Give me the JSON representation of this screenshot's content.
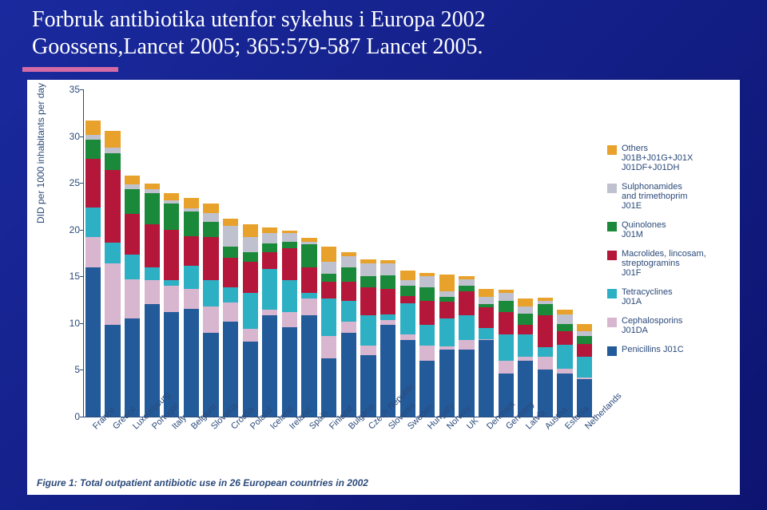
{
  "title_line1": "Forbruk antibiotika utenfor sykehus i Europa 2002",
  "title_line2": "Goossens,Lancet 2005; 365:579-587 Lancet 2005.",
  "caption": "Figure 1: Total outpatient antibiotic use in 26 European countries in 2002",
  "y_axis_label": "DID per 1000 inhabitants per day",
  "chart": {
    "type": "stacked_bar",
    "ylim": [
      0,
      35
    ],
    "ytick_step": 5,
    "yticks": [
      0,
      5,
      10,
      15,
      20,
      25,
      30,
      35
    ],
    "bar_width_ratio": 0.78,
    "background_color": "#ffffff",
    "axis_color": "#2b4a7a",
    "label_fontsize": 11,
    "categories": [
      "France",
      "Greece",
      "Luxembourg",
      "Portugal",
      "Italy",
      "Belgium",
      "Slovakia",
      "Croatia",
      "Poland",
      "Iceland",
      "Ireland",
      "Spain",
      "Finland",
      "Bulgaria",
      "Czech Republic",
      "Slovenia",
      "Sweden",
      "Hungary",
      "Norway",
      "UK",
      "Denmark",
      "Germany",
      "Latvia",
      "Austria",
      "Estonia",
      "Netherlands"
    ],
    "series_order": [
      "penicillins",
      "cephalosporins",
      "tetracyclines",
      "macrolides",
      "quinolones",
      "sulphonamides",
      "others"
    ],
    "legend": [
      {
        "key": "others",
        "label": "Others\nJ01B+J01G+J01X\nJ01DF+J01DH",
        "color": "#e8a22b"
      },
      {
        "key": "sulphonamides",
        "label": "Sulphonamides\nand trimethoprim\nJ01E",
        "color": "#bfc1cf"
      },
      {
        "key": "quinolones",
        "label": "Quinolones\nJ01M",
        "color": "#1a8a3a"
      },
      {
        "key": "macrolides",
        "label": "Macrolides, lincosam,\nstreptogramins\nJ01F",
        "color": "#b5173a"
      },
      {
        "key": "tetracyclines",
        "label": "Tetracyclines\nJ01A",
        "color": "#2db0c4"
      },
      {
        "key": "cephalosporins",
        "label": "Cephalosporins\nJ01DA",
        "color": "#d9b6cf"
      },
      {
        "key": "penicillins",
        "label": "Penicillins J01C",
        "color": "#235a9a"
      }
    ],
    "colors": {
      "penicillins": "#235a9a",
      "cephalosporins": "#d9b6cf",
      "tetracyclines": "#2db0c4",
      "macrolides": "#b5173a",
      "quinolones": "#1a8a3a",
      "sulphonamides": "#bfc1cf",
      "others": "#e8a22b"
    },
    "data": {
      "France": {
        "penicillins": 16.0,
        "cephalosporins": 3.2,
        "tetracyclines": 3.2,
        "macrolides": 5.2,
        "quinolones": 2.0,
        "sulphonamides": 0.5,
        "others": 1.6
      },
      "Greece": {
        "penicillins": 9.8,
        "cephalosporins": 6.6,
        "tetracyclines": 2.2,
        "macrolides": 7.8,
        "quinolones": 1.8,
        "sulphonamides": 0.6,
        "others": 1.8
      },
      "Luxembourg": {
        "penicillins": 10.5,
        "cephalosporins": 4.2,
        "tetracyclines": 2.6,
        "macrolides": 4.4,
        "quinolones": 2.6,
        "sulphonamides": 0.5,
        "others": 1.0
      },
      "Portugal": {
        "penicillins": 12.0,
        "cephalosporins": 2.6,
        "tetracyclines": 1.4,
        "macrolides": 4.6,
        "quinolones": 3.3,
        "sulphonamides": 0.4,
        "others": 0.6
      },
      "Italy": {
        "penicillins": 11.2,
        "cephalosporins": 2.8,
        "tetracyclines": 0.6,
        "macrolides": 5.4,
        "quinolones": 2.8,
        "sulphonamides": 0.3,
        "others": 0.8
      },
      "Belgium": {
        "penicillins": 11.5,
        "cephalosporins": 2.2,
        "tetracyclines": 2.4,
        "macrolides": 3.2,
        "quinolones": 2.6,
        "sulphonamides": 0.4,
        "others": 1.1
      },
      "Slovakia": {
        "penicillins": 9.0,
        "cephalosporins": 2.8,
        "tetracyclines": 2.8,
        "macrolides": 4.6,
        "quinolones": 1.6,
        "sulphonamides": 1.0,
        "others": 1.0
      },
      "Croatia": {
        "penicillins": 10.2,
        "cephalosporins": 2.0,
        "tetracyclines": 1.6,
        "macrolides": 3.2,
        "quinolones": 1.2,
        "sulphonamides": 2.2,
        "others": 0.8
      },
      "Poland": {
        "penicillins": 8.0,
        "cephalosporins": 1.4,
        "tetracyclines": 3.8,
        "macrolides": 3.4,
        "quinolones": 1.0,
        "sulphonamides": 1.6,
        "others": 1.4
      },
      "Iceland": {
        "penicillins": 10.8,
        "cephalosporins": 0.6,
        "tetracyclines": 4.4,
        "macrolides": 1.8,
        "quinolones": 0.9,
        "sulphonamides": 1.1,
        "others": 0.6
      },
      "Ireland": {
        "penicillins": 9.6,
        "cephalosporins": 1.6,
        "tetracyclines": 3.4,
        "macrolides": 3.4,
        "quinolones": 0.7,
        "sulphonamides": 0.9,
        "others": 0.3
      },
      "Spain": {
        "penicillins": 10.8,
        "cephalosporins": 1.8,
        "tetracyclines": 0.6,
        "macrolides": 2.8,
        "quinolones": 2.4,
        "sulphonamides": 0.3,
        "others": 0.4
      },
      "Finland": {
        "penicillins": 6.2,
        "cephalosporins": 2.4,
        "tetracyclines": 4.0,
        "macrolides": 1.8,
        "quinolones": 0.9,
        "sulphonamides": 1.3,
        "others": 1.6
      },
      "Bulgaria": {
        "penicillins": 9.0,
        "cephalosporins": 1.2,
        "tetracyclines": 2.2,
        "macrolides": 2.0,
        "quinolones": 1.6,
        "sulphonamides": 1.2,
        "others": 0.4
      },
      "CzechRepublic": {
        "penicillins": 6.6,
        "cephalosporins": 1.0,
        "tetracyclines": 3.2,
        "macrolides": 3.0,
        "quinolones": 1.2,
        "sulphonamides": 1.4,
        "others": 0.4
      },
      "Slovenia": {
        "penicillins": 9.8,
        "cephalosporins": 0.5,
        "tetracyclines": 0.6,
        "macrolides": 2.8,
        "quinolones": 1.4,
        "sulphonamides": 1.3,
        "others": 0.3
      },
      "Sweden": {
        "penicillins": 8.2,
        "cephalosporins": 0.6,
        "tetracyclines": 3.3,
        "macrolides": 0.8,
        "quinolones": 1.1,
        "sulphonamides": 0.6,
        "others": 1.0
      },
      "Hungary": {
        "penicillins": 6.0,
        "cephalosporins": 1.6,
        "tetracyclines": 2.2,
        "macrolides": 2.6,
        "quinolones": 1.4,
        "sulphonamides": 1.2,
        "others": 0.4
      },
      "Norway": {
        "penicillins": 7.2,
        "cephalosporins": 0.3,
        "tetracyclines": 3.0,
        "macrolides": 1.8,
        "quinolones": 0.5,
        "sulphonamides": 0.6,
        "others": 1.8
      },
      "UK": {
        "penicillins": 7.2,
        "cephalosporins": 1.0,
        "tetracyclines": 2.6,
        "macrolides": 2.6,
        "quinolones": 0.6,
        "sulphonamides": 0.7,
        "others": 0.3
      },
      "Denmark": {
        "penicillins": 8.2,
        "cephalosporins": 0.1,
        "tetracyclines": 1.2,
        "macrolides": 2.2,
        "quinolones": 0.3,
        "sulphonamides": 0.8,
        "others": 0.9
      },
      "Germany": {
        "penicillins": 4.6,
        "cephalosporins": 1.4,
        "tetracyclines": 2.8,
        "macrolides": 2.4,
        "quinolones": 1.2,
        "sulphonamides": 0.8,
        "others": 0.4
      },
      "Latvia": {
        "penicillins": 6.0,
        "cephalosporins": 0.4,
        "tetracyclines": 2.4,
        "macrolides": 1.0,
        "quinolones": 1.2,
        "sulphonamides": 0.8,
        "others": 0.8
      },
      "Austria": {
        "penicillins": 5.0,
        "cephalosporins": 1.4,
        "tetracyclines": 1.0,
        "macrolides": 3.4,
        "quinolones": 1.2,
        "sulphonamides": 0.4,
        "others": 0.3
      },
      "Estonia": {
        "penicillins": 4.6,
        "cephalosporins": 0.5,
        "tetracyclines": 2.6,
        "macrolides": 1.4,
        "quinolones": 0.8,
        "sulphonamides": 1.0,
        "others": 0.5
      },
      "Netherlands": {
        "penicillins": 4.0,
        "cephalosporins": 0.2,
        "tetracyclines": 2.2,
        "macrolides": 1.4,
        "quinolones": 0.8,
        "sulphonamides": 0.5,
        "others": 0.8
      }
    }
  }
}
